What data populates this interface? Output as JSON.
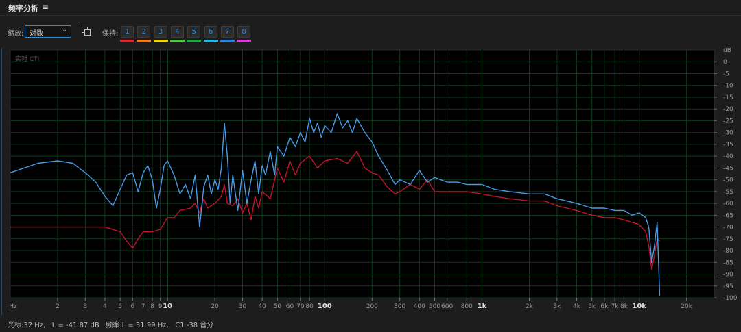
{
  "panel": {
    "title": "频率分析",
    "menu_icon": "≡"
  },
  "toolbar": {
    "scale_label": "缩放:",
    "scale_value": "对数",
    "hold_label": "保持:",
    "hold_buttons": [
      {
        "label": "1",
        "color": "#d9252f"
      },
      {
        "label": "2",
        "color": "#ef7a22"
      },
      {
        "label": "3",
        "color": "#e8d21e"
      },
      {
        "label": "4",
        "color": "#56c447"
      },
      {
        "label": "5",
        "color": "#1fa84c"
      },
      {
        "label": "6",
        "color": "#27b7e4"
      },
      {
        "label": "7",
        "color": "#2a7fd9"
      },
      {
        "label": "8",
        "color": "#d93ad2"
      }
    ]
  },
  "plot": {
    "realtime_label": "实时 CTI",
    "db_unit": "dB",
    "db_ticks": [
      "0",
      "-5",
      "-10",
      "-15",
      "-20",
      "-25",
      "-30",
      "-35",
      "-40",
      "-45",
      "-50",
      "-55",
      "-60",
      "-65",
      "-70",
      "-75",
      "-80",
      "-85",
      "-90",
      "-95",
      "-100"
    ],
    "freq_unit": "Hz",
    "freq_ticks": [
      {
        "v": 2,
        "l": "2",
        "major": false
      },
      {
        "v": 3,
        "l": "3",
        "major": false
      },
      {
        "v": 4,
        "l": "4",
        "major": false
      },
      {
        "v": 5,
        "l": "5",
        "major": false
      },
      {
        "v": 6,
        "l": "6",
        "major": false
      },
      {
        "v": 7,
        "l": "7",
        "major": false
      },
      {
        "v": 8,
        "l": "8",
        "major": false
      },
      {
        "v": 9,
        "l": "9",
        "major": false
      },
      {
        "v": 10,
        "l": "10",
        "major": true
      },
      {
        "v": 20,
        "l": "20",
        "major": false
      },
      {
        "v": 30,
        "l": "30",
        "major": false
      },
      {
        "v": 40,
        "l": "40",
        "major": false
      },
      {
        "v": 50,
        "l": "50",
        "major": false
      },
      {
        "v": 60,
        "l": "60",
        "major": false
      },
      {
        "v": 70,
        "l": "70",
        "major": false
      },
      {
        "v": 80,
        "l": "80",
        "major": false
      },
      {
        "v": 100,
        "l": "100",
        "major": true
      },
      {
        "v": 200,
        "l": "200",
        "major": false
      },
      {
        "v": 300,
        "l": "300",
        "major": false
      },
      {
        "v": 400,
        "l": "400",
        "major": false
      },
      {
        "v": 500,
        "l": "500",
        "major": false
      },
      {
        "v": 600,
        "l": "600",
        "major": false
      },
      {
        "v": 800,
        "l": "800",
        "major": false
      },
      {
        "v": 1000,
        "l": "1k",
        "major": true
      },
      {
        "v": 2000,
        "l": "2k",
        "major": false
      },
      {
        "v": 3000,
        "l": "3k",
        "major": false
      },
      {
        "v": 4000,
        "l": "4k",
        "major": false
      },
      {
        "v": 5000,
        "l": "5k",
        "major": false
      },
      {
        "v": 6000,
        "l": "6k",
        "major": false
      },
      {
        "v": 7000,
        "l": "7k",
        "major": false
      },
      {
        "v": 8000,
        "l": "8k",
        "major": false
      },
      {
        "v": 10000,
        "l": "10k",
        "major": true
      },
      {
        "v": 20000,
        "l": "20k",
        "major": false
      }
    ],
    "colors": {
      "background": "#000000",
      "grid": "#0e3a1e",
      "grid_major": "#16552b",
      "red_channel": "#c4142a",
      "blue_channel": "#4a9be8",
      "tick_text": "#9a9a9a"
    }
  },
  "chart_data": {
    "type": "line",
    "xscale": "log",
    "xlim": [
      1,
      30000
    ],
    "ylim": [
      -100,
      5
    ],
    "xlabel": "Hz",
    "ylabel": "dB",
    "series": [
      {
        "color": "#4a9be8",
        "points": [
          [
            1,
            -47
          ],
          [
            1.5,
            -43
          ],
          [
            2,
            -42
          ],
          [
            2.5,
            -43
          ],
          [
            3,
            -47
          ],
          [
            3.5,
            -51
          ],
          [
            4,
            -57
          ],
          [
            4.5,
            -61
          ],
          [
            5,
            -54
          ],
          [
            5.5,
            -48
          ],
          [
            6,
            -47
          ],
          [
            6.5,
            -55
          ],
          [
            7,
            -47
          ],
          [
            7.5,
            -44
          ],
          [
            8,
            -50
          ],
          [
            8.5,
            -62
          ],
          [
            9,
            -54
          ],
          [
            9.5,
            -44
          ],
          [
            10,
            -42
          ],
          [
            11,
            -48
          ],
          [
            12,
            -56
          ],
          [
            13,
            -52
          ],
          [
            14,
            -58
          ],
          [
            15,
            -48
          ],
          [
            16,
            -70
          ],
          [
            17,
            -53
          ],
          [
            18,
            -48
          ],
          [
            19,
            -56
          ],
          [
            20,
            -50
          ],
          [
            21,
            -54
          ],
          [
            22,
            -45
          ],
          [
            23,
            -26
          ],
          [
            24,
            -40
          ],
          [
            25,
            -60
          ],
          [
            26,
            -48
          ],
          [
            28,
            -63
          ],
          [
            30,
            -46
          ],
          [
            32,
            -60
          ],
          [
            34,
            -50
          ],
          [
            36,
            -42
          ],
          [
            38,
            -56
          ],
          [
            40,
            -44
          ],
          [
            42,
            -48
          ],
          [
            45,
            -38
          ],
          [
            48,
            -48
          ],
          [
            50,
            -36
          ],
          [
            55,
            -40
          ],
          [
            60,
            -32
          ],
          [
            65,
            -36
          ],
          [
            70,
            -30
          ],
          [
            75,
            -34
          ],
          [
            80,
            -24
          ],
          [
            85,
            -30
          ],
          [
            90,
            -26
          ],
          [
            95,
            -32
          ],
          [
            100,
            -27
          ],
          [
            110,
            -30
          ],
          [
            120,
            -22
          ],
          [
            130,
            -28
          ],
          [
            140,
            -25
          ],
          [
            150,
            -30
          ],
          [
            160,
            -24
          ],
          [
            180,
            -30
          ],
          [
            200,
            -34
          ],
          [
            220,
            -40
          ],
          [
            250,
            -46
          ],
          [
            280,
            -52
          ],
          [
            300,
            -50
          ],
          [
            350,
            -52
          ],
          [
            400,
            -46
          ],
          [
            450,
            -51
          ],
          [
            500,
            -49
          ],
          [
            600,
            -51
          ],
          [
            700,
            -51
          ],
          [
            800,
            -52
          ],
          [
            1000,
            -52
          ],
          [
            1200,
            -54
          ],
          [
            1500,
            -55
          ],
          [
            2000,
            -56
          ],
          [
            2500,
            -56
          ],
          [
            3000,
            -58
          ],
          [
            4000,
            -60
          ],
          [
            5000,
            -62
          ],
          [
            6000,
            -62
          ],
          [
            7000,
            -63
          ],
          [
            8000,
            -63
          ],
          [
            9000,
            -65
          ],
          [
            10000,
            -64
          ],
          [
            11000,
            -66
          ],
          [
            11500,
            -70
          ],
          [
            12000,
            -85
          ],
          [
            12500,
            -78
          ],
          [
            13000,
            -68
          ],
          [
            13500,
            -99
          ]
        ]
      },
      {
        "color": "#c4142a",
        "points": [
          [
            1,
            -70
          ],
          [
            2,
            -70
          ],
          [
            3,
            -70
          ],
          [
            4,
            -70
          ],
          [
            5,
            -72
          ],
          [
            5.5,
            -76
          ],
          [
            6,
            -79
          ],
          [
            6.5,
            -75
          ],
          [
            7,
            -72
          ],
          [
            8,
            -72
          ],
          [
            9,
            -71
          ],
          [
            10,
            -66
          ],
          [
            11,
            -66
          ],
          [
            12,
            -63
          ],
          [
            14,
            -62
          ],
          [
            15,
            -60
          ],
          [
            16,
            -64
          ],
          [
            17,
            -58
          ],
          [
            18,
            -62
          ],
          [
            20,
            -60
          ],
          [
            22,
            -57
          ],
          [
            23,
            -52
          ],
          [
            24,
            -60
          ],
          [
            26,
            -61
          ],
          [
            28,
            -58
          ],
          [
            30,
            -64
          ],
          [
            32,
            -60
          ],
          [
            34,
            -67
          ],
          [
            36,
            -57
          ],
          [
            38,
            -62
          ],
          [
            40,
            -55
          ],
          [
            45,
            -58
          ],
          [
            50,
            -45
          ],
          [
            55,
            -51
          ],
          [
            60,
            -42
          ],
          [
            65,
            -48
          ],
          [
            70,
            -43
          ],
          [
            80,
            -40
          ],
          [
            90,
            -45
          ],
          [
            100,
            -42
          ],
          [
            120,
            -41
          ],
          [
            140,
            -43
          ],
          [
            160,
            -38
          ],
          [
            180,
            -45
          ],
          [
            200,
            -47
          ],
          [
            220,
            -48
          ],
          [
            250,
            -53
          ],
          [
            280,
            -56
          ],
          [
            300,
            -55
          ],
          [
            350,
            -52
          ],
          [
            400,
            -54
          ],
          [
            450,
            -50
          ],
          [
            500,
            -55
          ],
          [
            600,
            -55
          ],
          [
            700,
            -55
          ],
          [
            800,
            -55
          ],
          [
            1000,
            -56
          ],
          [
            1200,
            -57
          ],
          [
            1500,
            -58
          ],
          [
            2000,
            -59
          ],
          [
            2500,
            -59
          ],
          [
            3000,
            -61
          ],
          [
            4000,
            -63
          ],
          [
            5000,
            -65
          ],
          [
            6000,
            -66
          ],
          [
            7000,
            -66
          ],
          [
            8000,
            -67
          ],
          [
            9000,
            -68
          ],
          [
            10000,
            -69
          ],
          [
            11000,
            -72
          ],
          [
            11500,
            -78
          ],
          [
            12000,
            -88
          ],
          [
            12500,
            -82
          ],
          [
            13000,
            -75
          ],
          [
            13500,
            -76
          ]
        ]
      }
    ]
  },
  "status": {
    "cursor": "光标:32 Hz,   L = -41.87 dB",
    "freq": "频率:L = 31.99 Hz,",
    "pitch": "C1 -38 音分"
  }
}
